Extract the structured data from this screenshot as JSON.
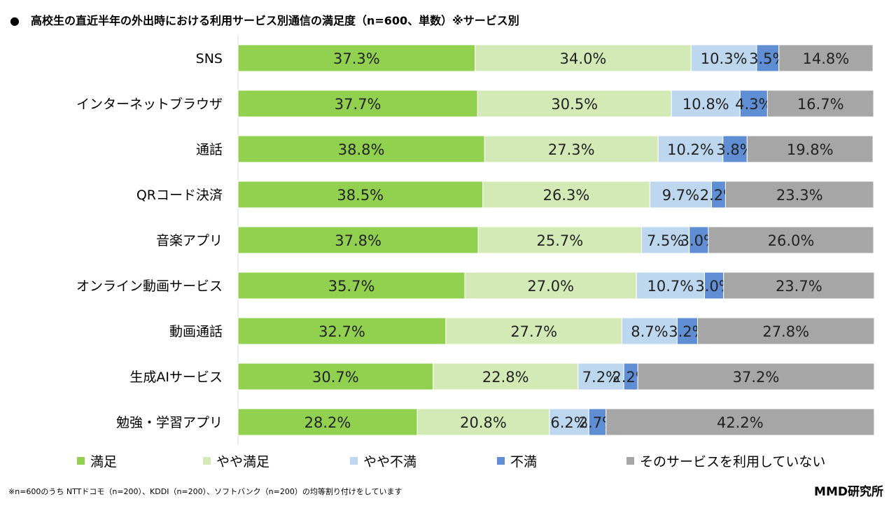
{
  "title": "●　高校生の直近半年の外出時における利用サービス別通信の満足度（n=600、単数）※サービス別",
  "footnote": "※n=600のうち NTTドコモ（n=200）、KDDI（n=200）、ソフトバンク（n=200）の均等割り付けをしています",
  "logo": "MMD研究所",
  "chart_data": {
    "type": "bar",
    "orientation": "horizontal",
    "stacked": "100%",
    "title": "高校生の直近半年の外出時における利用サービス別通信の満足度（n=600、単数）※サービス別",
    "categories": [
      "SNS",
      "インターネットブラウザ",
      "通話",
      "QRコード決済",
      "音楽アプリ",
      "オンライン動画サービス",
      "動画通話",
      "生成AIサービス",
      "勉強・学習アプリ"
    ],
    "series": [
      {
        "name": "満足",
        "color": "#92d050",
        "values": [
          37.3,
          37.7,
          38.8,
          38.5,
          37.8,
          35.7,
          32.7,
          30.7,
          28.2
        ]
      },
      {
        "name": "やや満足",
        "color": "#d3eab6",
        "values": [
          34.0,
          30.5,
          27.3,
          26.3,
          25.7,
          27.0,
          27.7,
          22.8,
          20.8
        ]
      },
      {
        "name": "やや不満",
        "color": "#bdd7ee",
        "values": [
          10.3,
          10.8,
          10.2,
          9.7,
          7.5,
          10.7,
          8.7,
          7.2,
          6.2
        ]
      },
      {
        "name": "不満",
        "color": "#5f8ed4",
        "values": [
          3.5,
          4.3,
          3.8,
          2.2,
          3.0,
          3.0,
          3.2,
          2.2,
          2.7
        ]
      },
      {
        "name": "そのサービスを利用していない",
        "color": "#a6a6a6",
        "values": [
          14.8,
          16.7,
          19.8,
          23.3,
          26.0,
          23.7,
          27.8,
          37.2,
          42.2
        ]
      }
    ],
    "unit": "%",
    "legend": "bottom",
    "grid": false
  }
}
